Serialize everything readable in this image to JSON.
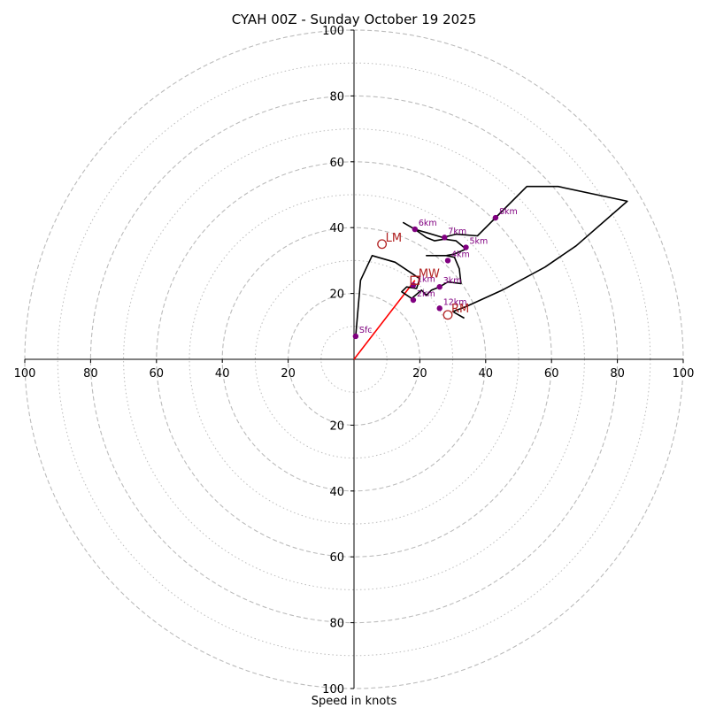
{
  "chart_data": {
    "type": "hodograph",
    "title": "CYAH 00Z - Sunday October 19 2025",
    "xlabel": "Speed in knots",
    "axis_range": [
      -100,
      100
    ],
    "ring_major": [
      20,
      40,
      60,
      80,
      100
    ],
    "ring_minor": [
      10,
      30,
      50,
      70,
      90
    ],
    "x_tick_labels": [
      {
        "value": -100,
        "label": "100"
      },
      {
        "value": -80,
        "label": "80"
      },
      {
        "value": -60,
        "label": "60"
      },
      {
        "value": -40,
        "label": "40"
      },
      {
        "value": -20,
        "label": "20"
      },
      {
        "value": 20,
        "label": "20"
      },
      {
        "value": 40,
        "label": "40"
      },
      {
        "value": 60,
        "label": "60"
      },
      {
        "value": 80,
        "label": "80"
      },
      {
        "value": 100,
        "label": "100"
      }
    ],
    "y_tick_labels": [
      {
        "value": 100,
        "label": "100"
      },
      {
        "value": 80,
        "label": "80"
      },
      {
        "value": 60,
        "label": "60"
      },
      {
        "value": 40,
        "label": "40"
      },
      {
        "value": 20,
        "label": "20"
      },
      {
        "value": -20,
        "label": "20"
      },
      {
        "value": -40,
        "label": "40"
      },
      {
        "value": -60,
        "label": "60"
      },
      {
        "value": -80,
        "label": "80"
      },
      {
        "value": -100,
        "label": "100"
      }
    ],
    "trace": [
      [
        0.5,
        7
      ],
      [
        2,
        24
      ],
      [
        5.5,
        31.5
      ],
      [
        12.5,
        29.5
      ],
      [
        20,
        24.5
      ],
      [
        19,
        21.5
      ],
      [
        16,
        22
      ],
      [
        14.5,
        20.5
      ],
      [
        17.5,
        18.5
      ],
      [
        20.5,
        21
      ],
      [
        22,
        19.5
      ],
      [
        23.5,
        21
      ],
      [
        26,
        22
      ],
      [
        28.5,
        23.5
      ],
      [
        32.5,
        23
      ],
      [
        32,
        27.5
      ],
      [
        30.5,
        31
      ],
      [
        28,
        31.5
      ],
      [
        22,
        31.5
      ],
      [
        28,
        31.5
      ],
      [
        30.5,
        32
      ],
      [
        34,
        33.5
      ],
      [
        31,
        36
      ],
      [
        27.5,
        36.5
      ],
      [
        24.5,
        36
      ],
      [
        22,
        37
      ],
      [
        18.5,
        39.5
      ],
      [
        15,
        41.5
      ],
      [
        18.5,
        39.5
      ],
      [
        22,
        38.5
      ],
      [
        27,
        37
      ],
      [
        31,
        38
      ],
      [
        37.5,
        37.5
      ],
      [
        43,
        43
      ],
      [
        52.5,
        52.5
      ],
      [
        58.5,
        52.5
      ],
      [
        62,
        52.5
      ],
      [
        83,
        48
      ],
      [
        67.5,
        34.5
      ],
      [
        58,
        28
      ],
      [
        45,
        21
      ],
      [
        34,
        16
      ],
      [
        30,
        14.5
      ],
      [
        33.5,
        12.5
      ]
    ],
    "height_markers": [
      {
        "label": "Sfc",
        "u": 0.5,
        "v": 7
      },
      {
        "label": "1km",
        "u": 18,
        "v": 22.5
      },
      {
        "label": "2km",
        "u": 18,
        "v": 18
      },
      {
        "label": "3km",
        "u": 26,
        "v": 22
      },
      {
        "label": "4km",
        "u": 28.5,
        "v": 30
      },
      {
        "label": "5km",
        "u": 34,
        "v": 34
      },
      {
        "label": "6km",
        "u": 18.5,
        "v": 39.5
      },
      {
        "label": "7km",
        "u": 27.5,
        "v": 37
      },
      {
        "label": "8km",
        "u": 43,
        "v": 43
      },
      {
        "label": "12km",
        "u": 26,
        "v": 15.5
      }
    ],
    "storm_motion": [
      {
        "label": "LM",
        "u": 8.5,
        "v": 35,
        "marker": "circle"
      },
      {
        "label": "MW",
        "u": 18.5,
        "v": 24,
        "marker": "square"
      },
      {
        "label": "RM",
        "u": 28.5,
        "v": 13.5,
        "marker": "circle"
      }
    ],
    "mean_wind_vector": {
      "u": 18.5,
      "v": 24
    }
  },
  "colors": {
    "trace": "#000000",
    "height_marker": "#800080",
    "storm_motion": "#b22222",
    "vector": "#ff0000",
    "ring": "#bbbbbb",
    "axis": "#000000"
  }
}
